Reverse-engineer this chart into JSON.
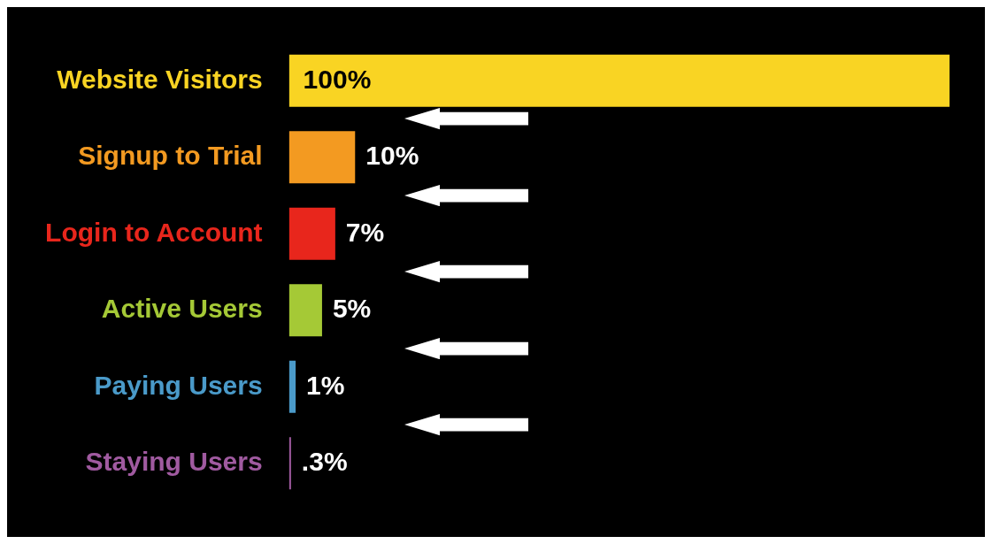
{
  "chart_data": {
    "type": "bar",
    "orientation": "horizontal",
    "categories": [
      "Website Visitors",
      "Signup to Trial",
      "Login to Account",
      "Active Users",
      "Paying Users",
      "Staying Users"
    ],
    "values": [
      100,
      10,
      7,
      5,
      1,
      0.3
    ],
    "colors": [
      "#f9d423",
      "#f39a21",
      "#e8261c",
      "#a5c936",
      "#4a9ac9",
      "#a05aa0"
    ],
    "value_labels": [
      "100%",
      "10%",
      "7%",
      "5%",
      "1%",
      ".3%"
    ],
    "tick_labels": "y",
    "legend": false
  }
}
